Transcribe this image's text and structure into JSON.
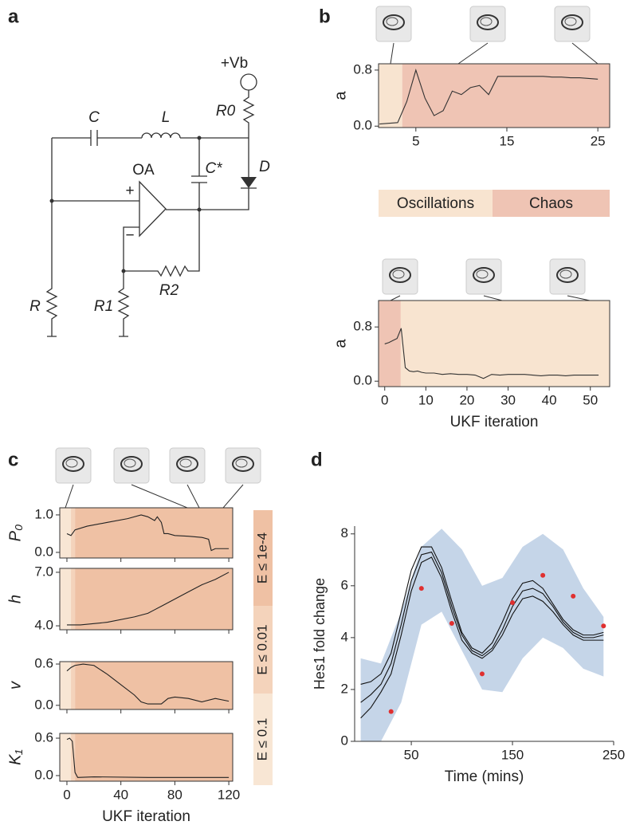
{
  "panel_labels": [
    "a",
    "b",
    "c",
    "d"
  ],
  "circuit": {
    "labels": [
      "+Vb",
      "R0",
      "C",
      "L",
      "C*",
      "D",
      "OA",
      "+",
      "−",
      "R",
      "R1",
      "R2"
    ]
  },
  "chart_data": [
    {
      "type": "line",
      "ylabel": "a",
      "frame": true,
      "xlim": [
        0.9,
        26.3
      ],
      "ylim": [
        -0.02,
        0.89
      ],
      "xticks": [
        5,
        15,
        25
      ],
      "yticks": [
        {
          "value": 0,
          "label": "0.0"
        },
        {
          "value": 0.8,
          "label": "0.8"
        }
      ],
      "regions": [
        {
          "name": "Oscillations",
          "color": "#f8e4d0",
          "from": 0.9,
          "to": 3.5
        },
        {
          "name": "Chaos",
          "color": "#efc4b4",
          "from": 3.5,
          "to": 26.3
        }
      ],
      "x": [
        1,
        2,
        3,
        4,
        5,
        6,
        7,
        8,
        9,
        10,
        11,
        12,
        13,
        14,
        15,
        16,
        17,
        18,
        19,
        20,
        21,
        22,
        23,
        24,
        25
      ],
      "series": [
        {
          "color": "#333333",
          "values": [
            0.03,
            0.04,
            0.05,
            0.35,
            0.8,
            0.4,
            0.15,
            0.22,
            0.5,
            0.45,
            0.55,
            0.58,
            0.45,
            0.71,
            0.71,
            0.71,
            0.71,
            0.71,
            0.71,
            0.7,
            0.7,
            0.69,
            0.69,
            0.68,
            0.67
          ]
        }
      ]
    },
    {
      "type": "line",
      "ylabel": "a",
      "xlabel": "UKF iteration",
      "frame": true,
      "xlim": [
        -1.5,
        54.7
      ],
      "ylim": [
        -0.08,
        1.19
      ],
      "xticks": [
        0,
        10,
        20,
        30,
        40,
        50
      ],
      "yticks": [
        {
          "value": 0,
          "label": "0.0"
        },
        {
          "value": 0.8,
          "label": "0.8"
        }
      ],
      "regions": [
        {
          "color": "#efc4b4",
          "from": -1.5,
          "to": 3.9
        },
        {
          "color": "#f8e4d0",
          "from": 3.9,
          "to": 54.7
        }
      ],
      "x": [
        0,
        1,
        2,
        3,
        4,
        5,
        6,
        7,
        8,
        9,
        10,
        12,
        14,
        16,
        18,
        20,
        22,
        24,
        26,
        28,
        30,
        32,
        34,
        36,
        38,
        40,
        42,
        44,
        46,
        48,
        50,
        52
      ],
      "series": [
        {
          "color": "#333333",
          "values": [
            0.55,
            0.57,
            0.6,
            0.63,
            0.78,
            0.2,
            0.15,
            0.14,
            0.15,
            0.13,
            0.12,
            0.12,
            0.1,
            0.11,
            0.1,
            0.1,
            0.09,
            0.04,
            0.1,
            0.09,
            0.1,
            0.1,
            0.1,
            0.09,
            0.08,
            0.09,
            0.09,
            0.08,
            0.09,
            0.09,
            0.09,
            0.09
          ]
        }
      ]
    },
    {
      "type": "line",
      "ylabel": "P₀",
      "frame": true,
      "xlim": [
        -5.3,
        122.9
      ],
      "ylim": [
        -0.15,
        1.19
      ],
      "xticks": [
        0,
        40,
        80,
        120
      ],
      "yticks": [
        {
          "value": 0,
          "label": "0.0"
        },
        {
          "value": 1,
          "label": "1.0"
        }
      ],
      "regions": [
        {
          "color": "#f8e6d4",
          "from": -5.3,
          "to": 3
        },
        {
          "color": "#f4d3bb",
          "from": 3,
          "to": 6
        },
        {
          "color": "#efc1a4",
          "from": 6,
          "to": 122.9
        }
      ],
      "x": [
        0,
        3,
        6,
        15,
        30,
        45,
        55,
        60,
        65,
        67,
        70,
        72,
        75,
        80,
        90,
        100,
        105,
        107,
        110,
        120
      ],
      "series": [
        {
          "color": "#222222",
          "values": [
            0.5,
            0.45,
            0.6,
            0.7,
            0.8,
            0.9,
            1.0,
            0.95,
            0.85,
            0.95,
            0.8,
            0.5,
            0.5,
            0.45,
            0.43,
            0.4,
            0.35,
            0.05,
            0.1,
            0.1
          ]
        }
      ]
    },
    {
      "type": "line",
      "ylabel": "h",
      "frame": true,
      "xlim": [
        -5.3,
        122.9
      ],
      "ylim": [
        3.78,
        7.22
      ],
      "xticks": [
        0,
        40,
        80,
        120
      ],
      "yticks": [
        {
          "value": 4,
          "label": "4.0"
        },
        {
          "value": 7,
          "label": "7.0"
        }
      ],
      "regions": [
        {
          "color": "#f8e6d4",
          "from": -5.3,
          "to": 3
        },
        {
          "color": "#f4d3bb",
          "from": 3,
          "to": 6
        },
        {
          "color": "#efc1a4",
          "from": 6,
          "to": 122.9
        }
      ],
      "x": [
        0,
        10,
        30,
        50,
        60,
        65,
        70,
        80,
        90,
        100,
        110,
        120
      ],
      "series": [
        {
          "color": "#222222",
          "values": [
            4.05,
            4.05,
            4.2,
            4.5,
            4.7,
            4.9,
            5.1,
            5.5,
            5.9,
            6.3,
            6.6,
            7.0
          ]
        }
      ]
    },
    {
      "type": "line",
      "ylabel": "v",
      "frame": true,
      "xlim": [
        -5.3,
        122.9
      ],
      "ylim": [
        -0.06,
        0.635
      ],
      "xticks": [
        0,
        40,
        80,
        120
      ],
      "yticks": [
        {
          "value": 0,
          "label": "0.0"
        },
        0.6
      ],
      "regions": [
        {
          "color": "#f8e6d4",
          "from": -5.3,
          "to": 3
        },
        {
          "color": "#f4d3bb",
          "from": 3,
          "to": 6
        },
        {
          "color": "#efc1a4",
          "from": 6,
          "to": 122.9
        }
      ],
      "x": [
        0,
        3,
        6,
        12,
        20,
        30,
        40,
        50,
        55,
        60,
        70,
        75,
        80,
        90,
        100,
        110,
        120
      ],
      "series": [
        {
          "color": "#222222",
          "values": [
            0.5,
            0.55,
            0.58,
            0.6,
            0.58,
            0.45,
            0.3,
            0.15,
            0.05,
            0.02,
            0.02,
            0.1,
            0.12,
            0.1,
            0.05,
            0.1,
            0.06
          ]
        }
      ]
    },
    {
      "type": "line",
      "ylabel": "K₁",
      "xlabel": "UKF iteration",
      "frame": true,
      "xlim": [
        -5.3,
        122.9
      ],
      "ylim": [
        -0.09,
        0.677
      ],
      "xticks": [
        0,
        40,
        80,
        120
      ],
      "yticks": [
        {
          "value": 0,
          "label": "0.0"
        },
        0.6
      ],
      "regions": [
        {
          "color": "#f8e6d4",
          "from": -5.3,
          "to": 3
        },
        {
          "color": "#f4d3bb",
          "from": 3,
          "to": 6
        },
        {
          "color": "#efc1a4",
          "from": 6,
          "to": 122.9
        }
      ],
      "x": [
        0,
        2,
        4,
        6,
        8,
        20,
        60,
        120
      ],
      "series": [
        {
          "color": "#222222",
          "values": [
            0.58,
            0.6,
            0.55,
            0.05,
            -0.03,
            -0.02,
            -0.03,
            -0.03
          ]
        }
      ],
      "side_bands": [
        {
          "label": "E ≤ 1e-4",
          "color": "#efc1a4"
        },
        {
          "label": "E ≤ 0.01",
          "color": "#f4d3bb"
        },
        {
          "label": "E ≤ 0.1",
          "color": "#f8e6d4"
        }
      ]
    },
    {
      "type": "line",
      "ylabel": "Hes1 fold change",
      "xlabel": "Time (mins)",
      "frame": false,
      "xlim": [
        -6,
        250
      ],
      "ylim": [
        0,
        8.3
      ],
      "xticks": [
        50,
        150,
        250
      ],
      "yticks": [
        0,
        2,
        4,
        6,
        8
      ],
      "band": {
        "color": "#c5d5e8",
        "x": [
          0,
          20,
          40,
          60,
          80,
          100,
          120,
          140,
          160,
          180,
          200,
          220,
          240
        ],
        "lower": [
          0,
          0,
          1.5,
          4.5,
          5.0,
          3.5,
          2.0,
          1.9,
          3.2,
          4.0,
          3.6,
          2.8,
          2.5
        ],
        "upper": [
          3.2,
          3.0,
          5.0,
          7.5,
          8.2,
          7.4,
          6.0,
          6.3,
          7.5,
          8.0,
          7.4,
          5.9,
          4.8
        ]
      },
      "x": [
        0,
        10,
        20,
        30,
        40,
        50,
        60,
        70,
        80,
        90,
        100,
        110,
        120,
        130,
        140,
        150,
        160,
        170,
        180,
        190,
        200,
        210,
        220,
        230,
        240
      ],
      "series": [
        {
          "color": "#111111",
          "values": [
            1.5,
            1.8,
            2.2,
            3.0,
            4.5,
            6.2,
            7.2,
            7.3,
            6.5,
            5.2,
            4.1,
            3.5,
            3.3,
            3.6,
            4.3,
            5.2,
            5.8,
            5.9,
            5.7,
            5.2,
            4.6,
            4.2,
            4.0,
            4.0,
            4.1
          ]
        },
        {
          "color": "#111111",
          "values": [
            2.2,
            2.3,
            2.6,
            3.4,
            5.0,
            6.6,
            7.5,
            7.5,
            6.7,
            5.4,
            4.2,
            3.6,
            3.4,
            3.8,
            4.6,
            5.5,
            6.1,
            6.2,
            5.9,
            5.3,
            4.7,
            4.3,
            4.1,
            4.1,
            4.2
          ]
        },
        {
          "color": "#111111",
          "values": [
            0.9,
            1.3,
            1.9,
            2.6,
            4.1,
            5.8,
            6.9,
            7.1,
            6.3,
            5.0,
            3.9,
            3.4,
            3.2,
            3.5,
            4.1,
            4.9,
            5.5,
            5.6,
            5.4,
            5.0,
            4.5,
            4.1,
            3.9,
            3.9,
            3.9
          ]
        }
      ],
      "points": {
        "color": "#e03030",
        "x": [
          30,
          60,
          90,
          120,
          150,
          180,
          210,
          240
        ],
        "values": [
          1.15,
          5.9,
          4.55,
          2.6,
          5.35,
          6.4,
          5.6,
          4.45
        ]
      }
    }
  ]
}
